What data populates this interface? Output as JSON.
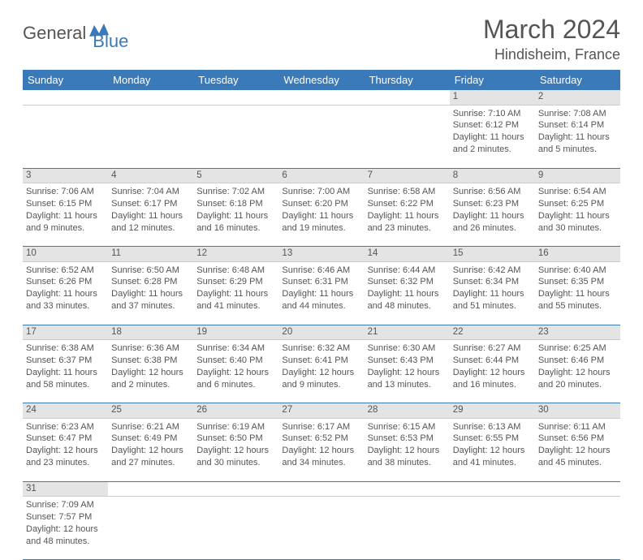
{
  "logo": {
    "part1": "General",
    "part2": "Blue"
  },
  "title": "March 2024",
  "location": "Hindisheim, France",
  "colors": {
    "header_bg": "#3a7ab8",
    "header_text": "#ffffff",
    "daynum_bg": "#e4e4e4",
    "body_text": "#555555",
    "rule": "#3a7ab8"
  },
  "weekdays": [
    "Sunday",
    "Monday",
    "Tuesday",
    "Wednesday",
    "Thursday",
    "Friday",
    "Saturday"
  ],
  "weeks": [
    [
      null,
      null,
      null,
      null,
      null,
      {
        "n": "1",
        "sr": "Sunrise: 7:10 AM",
        "ss": "Sunset: 6:12 PM",
        "dl1": "Daylight: 11 hours",
        "dl2": "and 2 minutes."
      },
      {
        "n": "2",
        "sr": "Sunrise: 7:08 AM",
        "ss": "Sunset: 6:14 PM",
        "dl1": "Daylight: 11 hours",
        "dl2": "and 5 minutes."
      }
    ],
    [
      {
        "n": "3",
        "sr": "Sunrise: 7:06 AM",
        "ss": "Sunset: 6:15 PM",
        "dl1": "Daylight: 11 hours",
        "dl2": "and 9 minutes."
      },
      {
        "n": "4",
        "sr": "Sunrise: 7:04 AM",
        "ss": "Sunset: 6:17 PM",
        "dl1": "Daylight: 11 hours",
        "dl2": "and 12 minutes."
      },
      {
        "n": "5",
        "sr": "Sunrise: 7:02 AM",
        "ss": "Sunset: 6:18 PM",
        "dl1": "Daylight: 11 hours",
        "dl2": "and 16 minutes."
      },
      {
        "n": "6",
        "sr": "Sunrise: 7:00 AM",
        "ss": "Sunset: 6:20 PM",
        "dl1": "Daylight: 11 hours",
        "dl2": "and 19 minutes."
      },
      {
        "n": "7",
        "sr": "Sunrise: 6:58 AM",
        "ss": "Sunset: 6:22 PM",
        "dl1": "Daylight: 11 hours",
        "dl2": "and 23 minutes."
      },
      {
        "n": "8",
        "sr": "Sunrise: 6:56 AM",
        "ss": "Sunset: 6:23 PM",
        "dl1": "Daylight: 11 hours",
        "dl2": "and 26 minutes."
      },
      {
        "n": "9",
        "sr": "Sunrise: 6:54 AM",
        "ss": "Sunset: 6:25 PM",
        "dl1": "Daylight: 11 hours",
        "dl2": "and 30 minutes."
      }
    ],
    [
      {
        "n": "10",
        "sr": "Sunrise: 6:52 AM",
        "ss": "Sunset: 6:26 PM",
        "dl1": "Daylight: 11 hours",
        "dl2": "and 33 minutes."
      },
      {
        "n": "11",
        "sr": "Sunrise: 6:50 AM",
        "ss": "Sunset: 6:28 PM",
        "dl1": "Daylight: 11 hours",
        "dl2": "and 37 minutes."
      },
      {
        "n": "12",
        "sr": "Sunrise: 6:48 AM",
        "ss": "Sunset: 6:29 PM",
        "dl1": "Daylight: 11 hours",
        "dl2": "and 41 minutes."
      },
      {
        "n": "13",
        "sr": "Sunrise: 6:46 AM",
        "ss": "Sunset: 6:31 PM",
        "dl1": "Daylight: 11 hours",
        "dl2": "and 44 minutes."
      },
      {
        "n": "14",
        "sr": "Sunrise: 6:44 AM",
        "ss": "Sunset: 6:32 PM",
        "dl1": "Daylight: 11 hours",
        "dl2": "and 48 minutes."
      },
      {
        "n": "15",
        "sr": "Sunrise: 6:42 AM",
        "ss": "Sunset: 6:34 PM",
        "dl1": "Daylight: 11 hours",
        "dl2": "and 51 minutes."
      },
      {
        "n": "16",
        "sr": "Sunrise: 6:40 AM",
        "ss": "Sunset: 6:35 PM",
        "dl1": "Daylight: 11 hours",
        "dl2": "and 55 minutes."
      }
    ],
    [
      {
        "n": "17",
        "sr": "Sunrise: 6:38 AM",
        "ss": "Sunset: 6:37 PM",
        "dl1": "Daylight: 11 hours",
        "dl2": "and 58 minutes."
      },
      {
        "n": "18",
        "sr": "Sunrise: 6:36 AM",
        "ss": "Sunset: 6:38 PM",
        "dl1": "Daylight: 12 hours",
        "dl2": "and 2 minutes."
      },
      {
        "n": "19",
        "sr": "Sunrise: 6:34 AM",
        "ss": "Sunset: 6:40 PM",
        "dl1": "Daylight: 12 hours",
        "dl2": "and 6 minutes."
      },
      {
        "n": "20",
        "sr": "Sunrise: 6:32 AM",
        "ss": "Sunset: 6:41 PM",
        "dl1": "Daylight: 12 hours",
        "dl2": "and 9 minutes."
      },
      {
        "n": "21",
        "sr": "Sunrise: 6:30 AM",
        "ss": "Sunset: 6:43 PM",
        "dl1": "Daylight: 12 hours",
        "dl2": "and 13 minutes."
      },
      {
        "n": "22",
        "sr": "Sunrise: 6:27 AM",
        "ss": "Sunset: 6:44 PM",
        "dl1": "Daylight: 12 hours",
        "dl2": "and 16 minutes."
      },
      {
        "n": "23",
        "sr": "Sunrise: 6:25 AM",
        "ss": "Sunset: 6:46 PM",
        "dl1": "Daylight: 12 hours",
        "dl2": "and 20 minutes."
      }
    ],
    [
      {
        "n": "24",
        "sr": "Sunrise: 6:23 AM",
        "ss": "Sunset: 6:47 PM",
        "dl1": "Daylight: 12 hours",
        "dl2": "and 23 minutes."
      },
      {
        "n": "25",
        "sr": "Sunrise: 6:21 AM",
        "ss": "Sunset: 6:49 PM",
        "dl1": "Daylight: 12 hours",
        "dl2": "and 27 minutes."
      },
      {
        "n": "26",
        "sr": "Sunrise: 6:19 AM",
        "ss": "Sunset: 6:50 PM",
        "dl1": "Daylight: 12 hours",
        "dl2": "and 30 minutes."
      },
      {
        "n": "27",
        "sr": "Sunrise: 6:17 AM",
        "ss": "Sunset: 6:52 PM",
        "dl1": "Daylight: 12 hours",
        "dl2": "and 34 minutes."
      },
      {
        "n": "28",
        "sr": "Sunrise: 6:15 AM",
        "ss": "Sunset: 6:53 PM",
        "dl1": "Daylight: 12 hours",
        "dl2": "and 38 minutes."
      },
      {
        "n": "29",
        "sr": "Sunrise: 6:13 AM",
        "ss": "Sunset: 6:55 PM",
        "dl1": "Daylight: 12 hours",
        "dl2": "and 41 minutes."
      },
      {
        "n": "30",
        "sr": "Sunrise: 6:11 AM",
        "ss": "Sunset: 6:56 PM",
        "dl1": "Daylight: 12 hours",
        "dl2": "and 45 minutes."
      }
    ],
    [
      {
        "n": "31",
        "sr": "Sunrise: 7:09 AM",
        "ss": "Sunset: 7:57 PM",
        "dl1": "Daylight: 12 hours",
        "dl2": "and 48 minutes."
      },
      null,
      null,
      null,
      null,
      null,
      null
    ]
  ]
}
